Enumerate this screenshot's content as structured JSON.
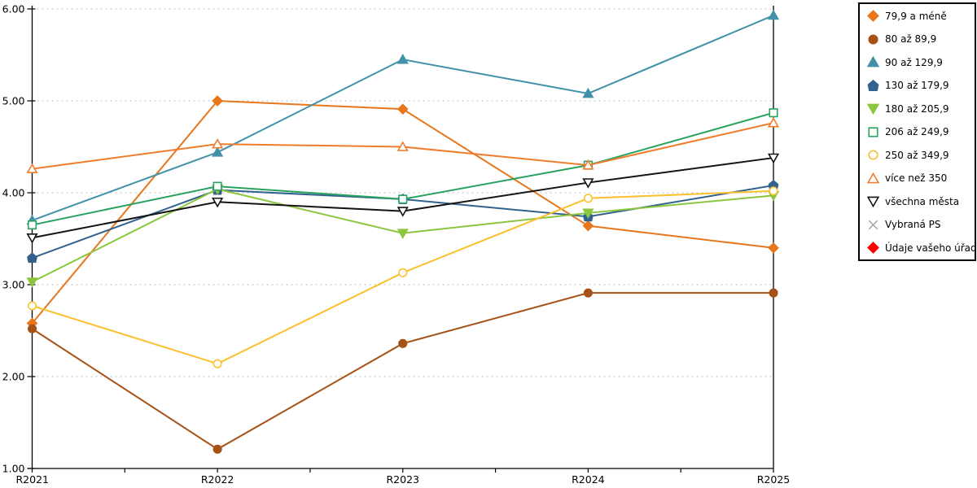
{
  "chart_data": {
    "type": "line",
    "categories": [
      "R2021",
      "R2022",
      "R2023",
      "R2024",
      "R2025"
    ],
    "series": [
      {
        "name": "79,9 a méně",
        "color": "#E8761B",
        "marker": "diamond",
        "filled": true,
        "values": [
          2.58,
          5.0,
          4.91,
          3.64,
          3.4
        ]
      },
      {
        "name": "80 až 89,9",
        "color": "#A65216",
        "marker": "circle",
        "filled": true,
        "values": [
          2.52,
          1.21,
          2.36,
          2.91,
          2.91
        ]
      },
      {
        "name": "90 až 129,9",
        "color": "#4191A9",
        "marker": "triangle-up",
        "filled": true,
        "values": [
          3.7,
          4.44,
          5.45,
          5.08,
          5.93
        ]
      },
      {
        "name": "130 až 179,9",
        "color": "#33618E",
        "marker": "pentagon",
        "filled": true,
        "values": [
          3.29,
          4.03,
          3.93,
          3.74,
          4.08
        ]
      },
      {
        "name": "180 až 205,9",
        "color": "#8CC63F",
        "marker": "triangle-down",
        "filled": true,
        "values": [
          3.03,
          4.04,
          3.56,
          3.78,
          3.97
        ]
      },
      {
        "name": "206 až 249,9",
        "color": "#27A35F",
        "marker": "square",
        "filled": false,
        "values": [
          3.65,
          4.07,
          3.93,
          4.3,
          4.87
        ]
      },
      {
        "name": "250 až 349,9",
        "color": "#FBC12D",
        "marker": "circle",
        "filled": false,
        "values": [
          2.77,
          2.14,
          3.13,
          3.94,
          4.02
        ]
      },
      {
        "name": "více než 350",
        "color": "#EE7E2E",
        "marker": "triangle-up",
        "filled": false,
        "values": [
          4.26,
          4.53,
          4.5,
          4.3,
          4.76
        ]
      },
      {
        "name": "všechna města",
        "color": "#141414",
        "marker": "triangle-down",
        "filled": false,
        "values": [
          3.51,
          3.9,
          3.8,
          4.11,
          4.38
        ]
      },
      {
        "name": "Vybraná PS",
        "color": "#A3A3A3",
        "marker": "x",
        "filled": false,
        "values": []
      },
      {
        "name": "Údaje vašeho úřadu",
        "color": "#FF0000",
        "marker": "diamond",
        "filled": true,
        "values": []
      }
    ],
    "title": "",
    "xlabel": "",
    "ylabel": "",
    "ylim": [
      1,
      6
    ],
    "y_tick_labels": [
      "6.00",
      "5.00",
      "4.00",
      "3.00",
      "2.00",
      "1.00"
    ],
    "grid": "horizontal-dashed",
    "gridline_color": "#BEBEBE",
    "axis_color": "#000000",
    "legend_position": "right"
  }
}
